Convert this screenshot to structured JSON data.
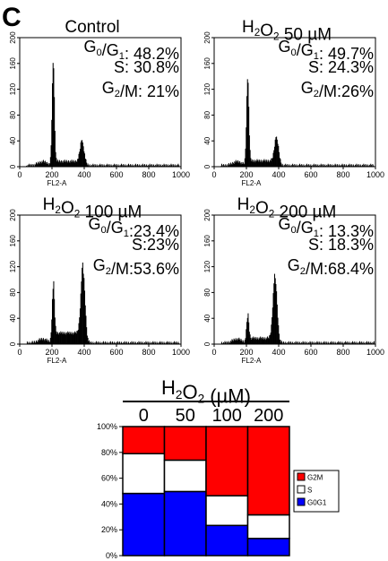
{
  "panel_label": "C",
  "histograms": [
    {
      "title": "Control",
      "stats": [
        {
          "label": "G0/G1",
          "value": ": 48.2%"
        },
        {
          "label": "S",
          "value": ": 30.8%"
        },
        {
          "label": "G2/M",
          "value": ": 21%"
        }
      ]
    },
    {
      "title": "H2O2 50 µM",
      "stats": [
        {
          "label": "G0/G1",
          "value": ": 49.7%"
        },
        {
          "label": "S",
          "value": ": 24.3%"
        },
        {
          "label": "G2/M",
          "value": ":26%"
        }
      ]
    },
    {
      "title": "H2O2 100 µM",
      "stats": [
        {
          "label": "G0/G1",
          "value": ":23.4%"
        },
        {
          "label": "S",
          "value": ":23%"
        },
        {
          "label": "G2/M",
          "value": ":53.6%"
        }
      ]
    },
    {
      "title": "H2O2 200 µM",
      "stats": [
        {
          "label": "G0/G1",
          "value": ": 13.3%"
        },
        {
          "label": "S",
          "value": ": 18.3%"
        },
        {
          "label": "G2/M",
          "value": ":68.4%"
        }
      ]
    }
  ],
  "colors": {
    "g2m": "#ff0000",
    "s": "#ffffff",
    "g0g1": "#0000ff",
    "hist": "#000000"
  },
  "chart_data": [
    {
      "type": "area",
      "subtype": "flow-cytometry-histogram",
      "title": "Control",
      "xlabel": "FL2-A",
      "ylabel": "",
      "xlim": [
        0,
        1000
      ],
      "ylim": [
        0,
        200
      ],
      "x_ticks": [
        0,
        200,
        400,
        600,
        800,
        1000
      ],
      "y_ticks": [
        0,
        40,
        80,
        120,
        160,
        200
      ],
      "peaks": [
        {
          "x": 205,
          "y": 160
        },
        {
          "x": 385,
          "y": 35
        }
      ]
    },
    {
      "type": "area",
      "subtype": "flow-cytometry-histogram",
      "title": "H2O2 50 µM",
      "xlabel": "FL2-A",
      "ylabel": "",
      "xlim": [
        0,
        1000
      ],
      "ylim": [
        0,
        200
      ],
      "x_ticks": [
        0,
        200,
        400,
        600,
        800,
        1000
      ],
      "y_ticks": [
        0,
        40,
        80,
        120,
        160,
        200
      ],
      "peaks": [
        {
          "x": 205,
          "y": 135
        },
        {
          "x": 385,
          "y": 40
        }
      ]
    },
    {
      "type": "area",
      "subtype": "flow-cytometry-histogram",
      "title": "H2O2 100 µM",
      "xlabel": "FL2-A",
      "ylabel": "",
      "xlim": [
        0,
        1000
      ],
      "ylim": [
        0,
        200
      ],
      "x_ticks": [
        0,
        200,
        400,
        600,
        800,
        1000
      ],
      "y_ticks": [
        0,
        40,
        80,
        120,
        160,
        200
      ],
      "peaks": [
        {
          "x": 205,
          "y": 85
        },
        {
          "x": 390,
          "y": 110
        }
      ]
    },
    {
      "type": "area",
      "subtype": "flow-cytometry-histogram",
      "title": "H2O2 200 µM",
      "xlabel": "FL2-A",
      "ylabel": "",
      "xlim": [
        0,
        1000
      ],
      "ylim": [
        0,
        200
      ],
      "x_ticks": [
        0,
        200,
        400,
        600,
        800,
        1000
      ],
      "y_ticks": [
        0,
        40,
        80,
        120,
        160,
        200
      ],
      "peaks": [
        {
          "x": 205,
          "y": 40
        },
        {
          "x": 375,
          "y": 100
        }
      ]
    },
    {
      "type": "bar",
      "stacked": true,
      "normalized": true,
      "title": "H2O2 (µM)",
      "xlabel": "",
      "ylabel": "",
      "categories": [
        "0",
        "50",
        "100",
        "200"
      ],
      "series": [
        {
          "name": "G0G1",
          "values": [
            48.2,
            49.7,
            23.4,
            13.3
          ]
        },
        {
          "name": "S",
          "values": [
            30.8,
            24.3,
            23,
            18.3
          ]
        },
        {
          "name": "G2M",
          "values": [
            21,
            26,
            53.6,
            68.4
          ]
        }
      ],
      "ylim": [
        0,
        100
      ],
      "y_ticks": [
        "0%",
        "20%",
        "40%",
        "60%",
        "80%",
        "100%"
      ],
      "legend": [
        "G2M",
        "S",
        "G0G1"
      ],
      "legend_position": "right",
      "grid": false
    }
  ]
}
